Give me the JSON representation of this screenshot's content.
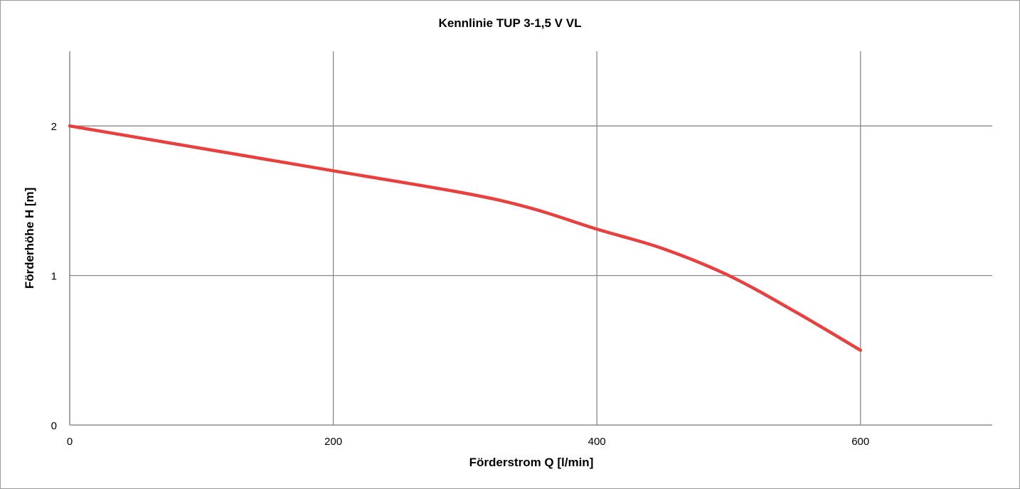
{
  "chart_data": {
    "type": "line",
    "title": "Kennlinie TUP 3-1,5 V VL",
    "xlabel": "Förderstrom Q [l/min]",
    "ylabel": "Förderhöhe H [m]",
    "xlim": [
      0,
      700
    ],
    "ylim": [
      0,
      2.5
    ],
    "x_ticks": [
      "0",
      "200",
      "400",
      "600"
    ],
    "y_ticks": [
      "0",
      "1",
      "2"
    ],
    "grid": true,
    "series": [
      {
        "color": "#e8403f",
        "x": [
          0,
          100,
          200,
          300,
          350,
          400,
          450,
          500,
          550,
          600
        ],
        "y": [
          2.0,
          1.85,
          1.7,
          1.55,
          1.45,
          1.31,
          1.18,
          1.0,
          0.76,
          0.5
        ]
      }
    ]
  }
}
